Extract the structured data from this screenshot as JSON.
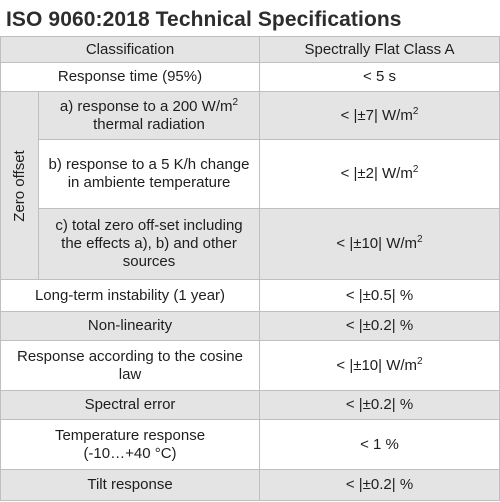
{
  "title": "ISO 9060:2018 Technical Specifications",
  "rows": [
    {
      "label": "Classification",
      "value": "Spectrally Flat Class A"
    },
    {
      "label": "Response time (95%)",
      "value": "< 5 s"
    },
    {
      "label": "Long-term instability (1 year)",
      "value": "< |±0.5| %"
    },
    {
      "label": "Non-linearity",
      "value": "< |±0.2| %"
    },
    {
      "label": "Response according to the cosine law",
      "value": "< |±10| W/m",
      "value_sup": "2"
    },
    {
      "label": "Spectral error",
      "value": "< |±0.2| %"
    },
    {
      "label": "Temperature response\n(-10…+40 °C)",
      "value": "< 1 %"
    },
    {
      "label": "Tilt response",
      "value": "< |±0.2| %"
    }
  ],
  "zero_offset": {
    "group_label": "Zero offset",
    "items": [
      {
        "label": "a) response to a 200 W/m",
        "label_sup": "2",
        "label_tail": " thermal radiation",
        "value": "< |±7| W/m",
        "value_sup": "2"
      },
      {
        "label": "b) response to a 5 K/h change in ambiente temperature",
        "value": "< |±2| W/m",
        "value_sup": "2"
      },
      {
        "label": "c) total zero off-set including the effects a), b) and other sources",
        "value": "< |±10| W/m",
        "value_sup": "2"
      }
    ]
  }
}
